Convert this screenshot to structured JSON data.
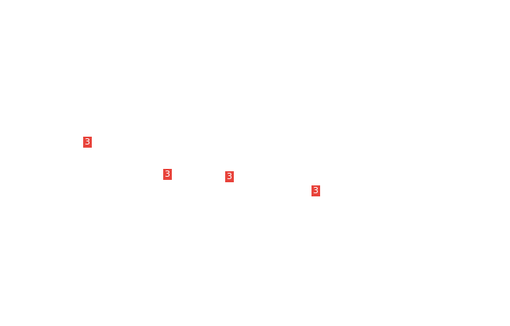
{
  "colors": {
    "marker": "#e8433b",
    "marker_text": "#ffffff",
    "background": "#ffffff"
  },
  "markers": [
    {
      "label": "3"
    },
    {
      "label": "3"
    },
    {
      "label": "3"
    },
    {
      "label": "3"
    }
  ]
}
